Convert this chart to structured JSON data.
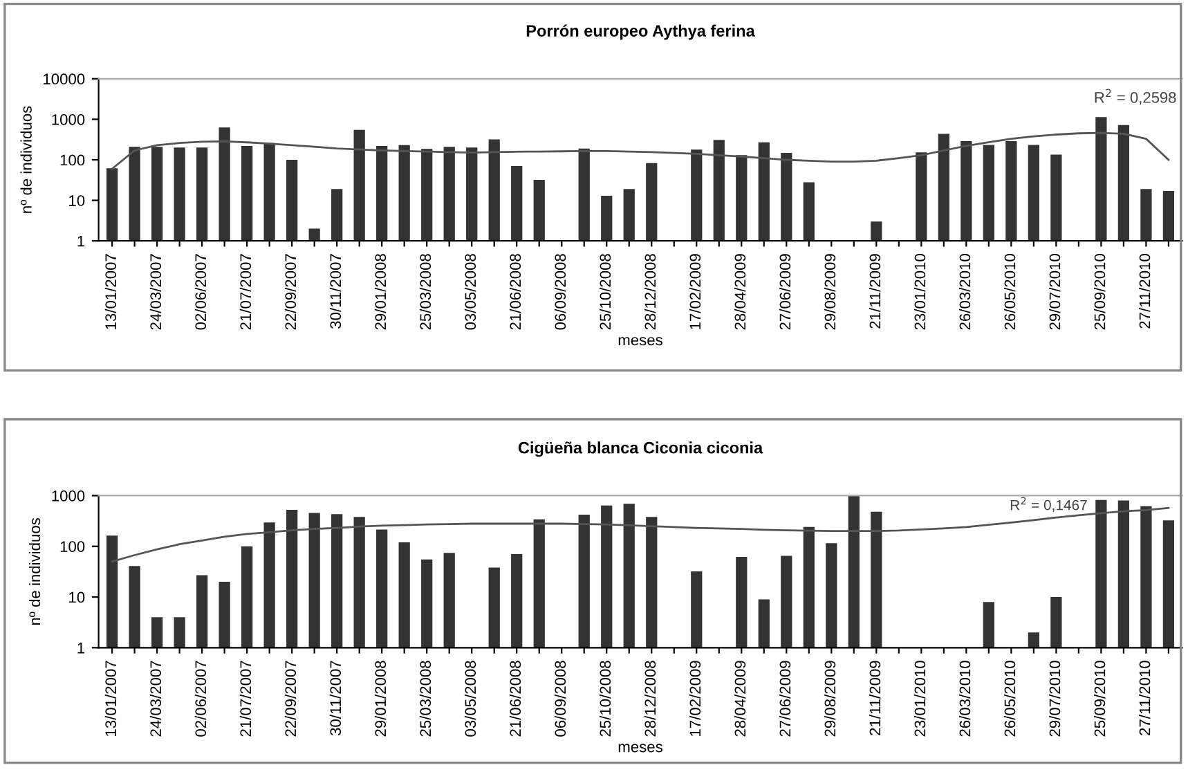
{
  "chart_data": [
    {
      "type": "bar",
      "title": "Porrón europeo Aythya ferina",
      "xlabel": "meses",
      "ylabel": "nº de individuos",
      "categories": [
        "13/01/2007",
        null,
        "24/03/2007",
        null,
        "02/06/2007",
        null,
        "21/07/2007",
        null,
        "22/09/2007",
        null,
        "30/11/2007",
        null,
        "29/01/2008",
        null,
        "25/03/2008",
        null,
        "03/05/2008",
        null,
        "21/06/2008",
        null,
        "06/09/2008",
        null,
        "25/10/2008",
        null,
        "28/12/2008",
        null,
        "17/02/2009",
        null,
        "28/04/2009",
        null,
        "27/06/2009",
        null,
        "29/08/2009",
        null,
        "21/11/2009",
        null,
        "23/01/2010",
        null,
        "26/03/2010",
        null,
        "26/05/2010",
        null,
        "29/07/2010",
        null,
        "25/09/2010",
        null,
        "27/11/2010",
        null
      ],
      "series": [
        {
          "color": "#333333",
          "values": [
            62,
            210,
            210,
            200,
            200,
            630,
            220,
            260,
            100,
            2,
            19,
            550,
            220,
            230,
            185,
            210,
            200,
            320,
            70,
            32,
            null,
            190,
            13,
            19,
            83,
            null,
            178,
            310,
            130,
            270,
            148,
            28,
            null,
            null,
            3,
            null,
            152,
            435,
            288,
            233,
            288,
            233,
            134,
            null,
            1130,
            720,
            19,
            17
          ]
        },
        {
          "type": "line",
          "color": "#555555",
          "values": [
            60,
            170,
            230,
            260,
            280,
            285,
            270,
            250,
            230,
            210,
            190,
            180,
            170,
            165,
            160,
            155,
            150,
            155,
            158,
            160,
            162,
            165,
            165,
            160,
            155,
            148,
            140,
            130,
            120,
            110,
            100,
            95,
            90,
            90,
            95,
            110,
            130,
            170,
            220,
            270,
            330,
            380,
            420,
            450,
            460,
            440,
            330,
            100
          ]
        }
      ],
      "log": "y",
      "ylim": [
        1,
        10000
      ],
      "yticks": [
        1,
        10,
        100,
        1000,
        10000
      ],
      "grid": false,
      "legend": false,
      "annotations": [
        "R$^{2}$ = 0,2598"
      ]
    },
    {
      "type": "bar",
      "title": "Cigüeña blanca Ciconia ciconia",
      "xlabel": "meses",
      "ylabel": "nº de individuos",
      "categories": [
        "13/01/2007",
        null,
        "24/03/2007",
        null,
        "02/06/2007",
        null,
        "21/07/2007",
        null,
        "22/09/2007",
        null,
        "30/11/2007",
        null,
        "29/01/2008",
        null,
        "25/03/2008",
        null,
        "03/05/2008",
        null,
        "21/06/2008",
        null,
        "06/09/2008",
        null,
        "25/10/2008",
        null,
        "28/12/2008",
        null,
        "17/02/2009",
        null,
        "28/04/2009",
        null,
        "27/06/2009",
        null,
        "29/08/2009",
        null,
        "21/11/2009",
        null,
        "23/01/2010",
        null,
        "26/03/2010",
        null,
        "26/05/2010",
        null,
        "29/07/2010",
        null,
        "25/09/2010",
        null,
        "27/11/2010",
        null
      ],
      "series": [
        {
          "color": "#333333",
          "values": [
            163,
            41,
            4,
            4,
            27,
            20,
            100,
            295,
            525,
            455,
            430,
            380,
            215,
            120,
            55,
            74,
            null,
            38,
            70,
            340,
            null,
            420,
            640,
            690,
            380,
            null,
            32,
            null,
            62,
            9,
            65,
            242,
            115,
            1000,
            483,
            null,
            null,
            null,
            null,
            8,
            null,
            2,
            10,
            null,
            820,
            800,
            620,
            325
          ]
        },
        {
          "type": "line",
          "color": "#555555",
          "values": [
            50,
            67,
            87,
            110,
            130,
            155,
            175,
            190,
            207,
            220,
            230,
            245,
            255,
            262,
            270,
            275,
            280,
            280,
            280,
            280,
            280,
            275,
            270,
            260,
            250,
            240,
            230,
            225,
            220,
            212,
            207,
            203,
            200,
            200,
            200,
            205,
            215,
            225,
            240,
            265,
            295,
            330,
            370,
            410,
            450,
            490,
            520,
            570
          ]
        }
      ],
      "log": "y",
      "ylim": [
        1,
        1000
      ],
      "yticks": [
        1,
        10,
        100,
        1000
      ],
      "grid": false,
      "legend": false,
      "annotations": [
        "R$^{2}$ = 0,1467"
      ]
    }
  ]
}
